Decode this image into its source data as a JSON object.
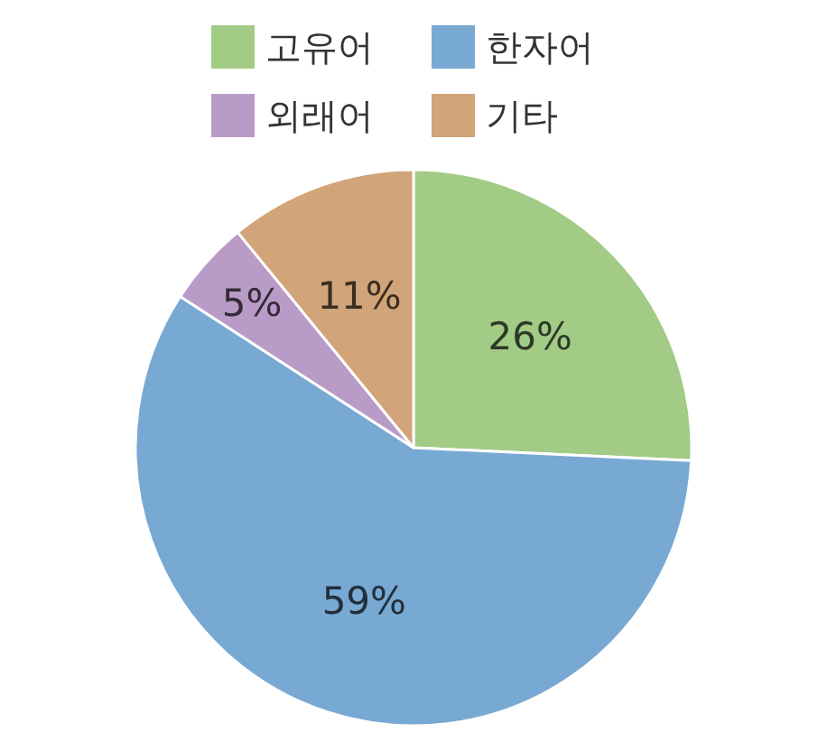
{
  "chart_data": {
    "type": "pie",
    "categories": [
      "고유어",
      "한자어",
      "외래어",
      "기타"
    ],
    "values": [
      26,
      59,
      5,
      11
    ],
    "colors": [
      "#a2cb86",
      "#78a9d3",
      "#b99bc7",
      "#d1a47a"
    ],
    "value_labels": [
      "26%",
      "59%",
      "5%",
      "11%"
    ],
    "legend": "top"
  }
}
